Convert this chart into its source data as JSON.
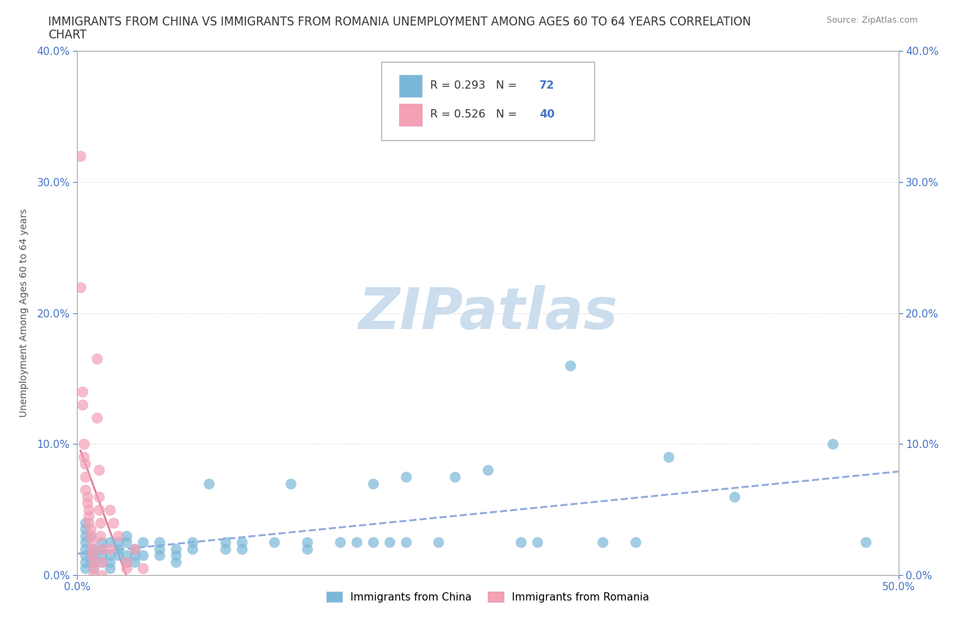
{
  "title_line1": "IMMIGRANTS FROM CHINA VS IMMIGRANTS FROM ROMANIA UNEMPLOYMENT AMONG AGES 60 TO 64 YEARS CORRELATION",
  "title_line2": "CHART",
  "source": "Source: ZipAtlas.com",
  "ylabel": "Unemployment Among Ages 60 to 64 years",
  "xlim": [
    0,
    0.5
  ],
  "ylim": [
    0,
    0.4
  ],
  "xticks": [
    0.0,
    0.5
  ],
  "yticks": [
    0.0,
    0.1,
    0.2,
    0.3,
    0.4
  ],
  "china_color": "#7ab8d9",
  "romania_color": "#f4a0b5",
  "china_line_color": "#4472c4",
  "romania_line_color": "#e07090",
  "china_R": 0.293,
  "china_N": 72,
  "romania_R": 0.526,
  "romania_N": 40,
  "legend_label_china": "Immigrants from China",
  "legend_label_romania": "Immigrants from Romania",
  "china_scatter": [
    [
      0.005,
      0.02
    ],
    [
      0.005,
      0.015
    ],
    [
      0.005,
      0.01
    ],
    [
      0.005,
      0.005
    ],
    [
      0.005,
      0.025
    ],
    [
      0.005,
      0.03
    ],
    [
      0.005,
      0.035
    ],
    [
      0.005,
      0.04
    ],
    [
      0.008,
      0.02
    ],
    [
      0.008,
      0.015
    ],
    [
      0.008,
      0.01
    ],
    [
      0.008,
      0.03
    ],
    [
      0.01,
      0.02
    ],
    [
      0.01,
      0.015
    ],
    [
      0.01,
      0.01
    ],
    [
      0.01,
      0.005
    ],
    [
      0.015,
      0.025
    ],
    [
      0.015,
      0.02
    ],
    [
      0.015,
      0.015
    ],
    [
      0.015,
      0.01
    ],
    [
      0.02,
      0.025
    ],
    [
      0.02,
      0.015
    ],
    [
      0.02,
      0.01
    ],
    [
      0.02,
      0.005
    ],
    [
      0.025,
      0.025
    ],
    [
      0.025,
      0.02
    ],
    [
      0.025,
      0.015
    ],
    [
      0.03,
      0.03
    ],
    [
      0.03,
      0.025
    ],
    [
      0.03,
      0.015
    ],
    [
      0.03,
      0.01
    ],
    [
      0.035,
      0.02
    ],
    [
      0.035,
      0.015
    ],
    [
      0.035,
      0.01
    ],
    [
      0.04,
      0.025
    ],
    [
      0.04,
      0.015
    ],
    [
      0.05,
      0.025
    ],
    [
      0.05,
      0.02
    ],
    [
      0.05,
      0.015
    ],
    [
      0.06,
      0.02
    ],
    [
      0.06,
      0.015
    ],
    [
      0.06,
      0.01
    ],
    [
      0.07,
      0.025
    ],
    [
      0.07,
      0.02
    ],
    [
      0.08,
      0.07
    ],
    [
      0.09,
      0.025
    ],
    [
      0.09,
      0.02
    ],
    [
      0.1,
      0.025
    ],
    [
      0.1,
      0.02
    ],
    [
      0.12,
      0.025
    ],
    [
      0.13,
      0.07
    ],
    [
      0.14,
      0.025
    ],
    [
      0.14,
      0.02
    ],
    [
      0.16,
      0.025
    ],
    [
      0.17,
      0.025
    ],
    [
      0.18,
      0.025
    ],
    [
      0.18,
      0.07
    ],
    [
      0.19,
      0.025
    ],
    [
      0.2,
      0.025
    ],
    [
      0.2,
      0.075
    ],
    [
      0.22,
      0.025
    ],
    [
      0.23,
      0.075
    ],
    [
      0.25,
      0.08
    ],
    [
      0.27,
      0.025
    ],
    [
      0.28,
      0.025
    ],
    [
      0.3,
      0.16
    ],
    [
      0.32,
      0.025
    ],
    [
      0.34,
      0.025
    ],
    [
      0.36,
      0.09
    ],
    [
      0.4,
      0.06
    ],
    [
      0.46,
      0.1
    ],
    [
      0.48,
      0.025
    ]
  ],
  "romania_scatter": [
    [
      0.002,
      0.32
    ],
    [
      0.002,
      0.22
    ],
    [
      0.003,
      0.14
    ],
    [
      0.003,
      0.13
    ],
    [
      0.004,
      0.1
    ],
    [
      0.004,
      0.09
    ],
    [
      0.005,
      0.085
    ],
    [
      0.005,
      0.075
    ],
    [
      0.005,
      0.065
    ],
    [
      0.006,
      0.06
    ],
    [
      0.006,
      0.055
    ],
    [
      0.007,
      0.05
    ],
    [
      0.007,
      0.045
    ],
    [
      0.007,
      0.04
    ],
    [
      0.008,
      0.035
    ],
    [
      0.008,
      0.03
    ],
    [
      0.009,
      0.025
    ],
    [
      0.009,
      0.02
    ],
    [
      0.009,
      0.015
    ],
    [
      0.01,
      0.01
    ],
    [
      0.01,
      0.005
    ],
    [
      0.01,
      0.0
    ],
    [
      0.012,
      0.165
    ],
    [
      0.012,
      0.12
    ],
    [
      0.013,
      0.08
    ],
    [
      0.013,
      0.06
    ],
    [
      0.013,
      0.05
    ],
    [
      0.014,
      0.04
    ],
    [
      0.014,
      0.03
    ],
    [
      0.015,
      0.02
    ],
    [
      0.015,
      0.01
    ],
    [
      0.015,
      0.0
    ],
    [
      0.02,
      0.05
    ],
    [
      0.02,
      0.02
    ],
    [
      0.022,
      0.04
    ],
    [
      0.025,
      0.03
    ],
    [
      0.03,
      0.01
    ],
    [
      0.03,
      0.005
    ],
    [
      0.035,
      0.02
    ],
    [
      0.04,
      0.005
    ]
  ],
  "watermark": "ZIPatlas",
  "watermark_color": "#ccdded",
  "background_color": "#ffffff",
  "grid_color": "#dddddd",
  "tick_color": "#4472c4",
  "title_color": "#333333",
  "title_fontsize": 12,
  "axis_label_color": "#555555",
  "axis_label_fontsize": 10
}
